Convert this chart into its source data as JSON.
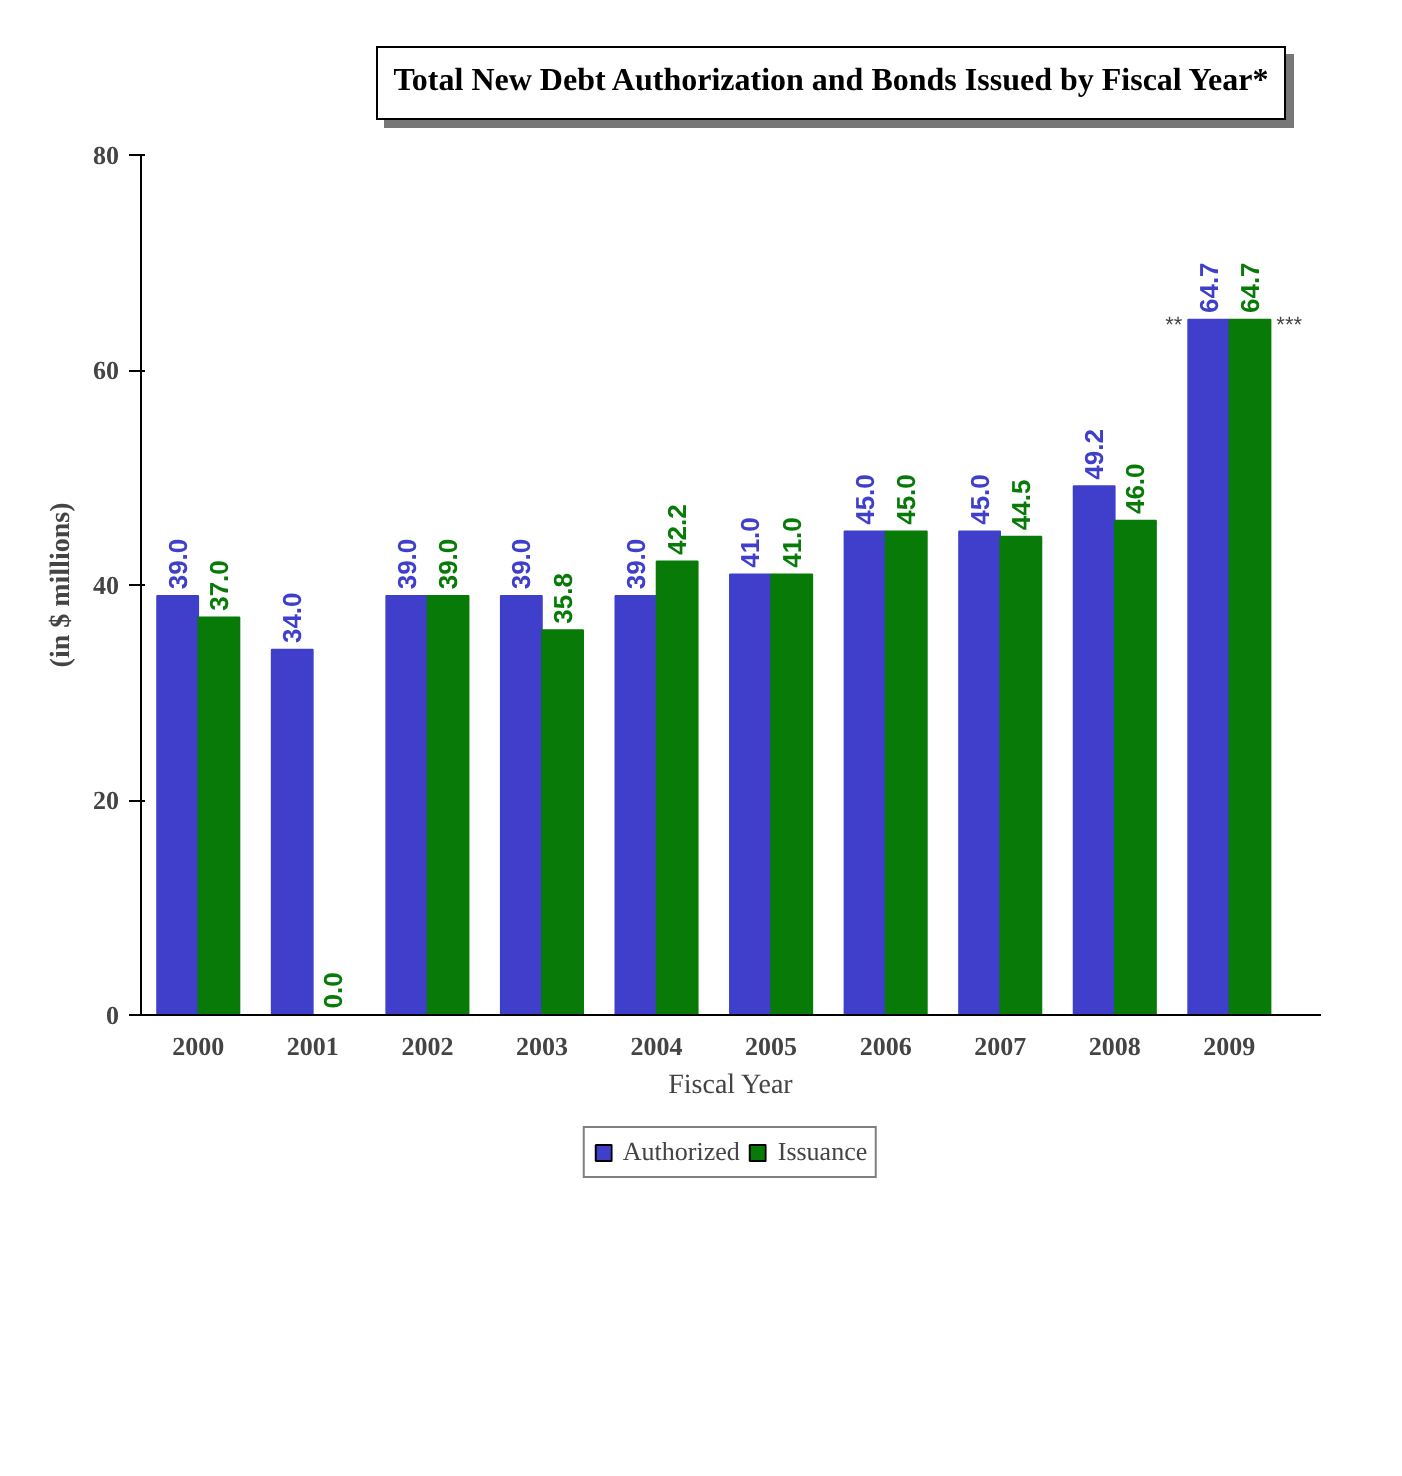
{
  "chart_data": {
    "type": "bar",
    "title": "Total New Debt Authorization and Bonds Issued by Fiscal Year*",
    "xlabel": "Fiscal Year",
    "ylabel": "(in $ millions)",
    "categories": [
      "2000",
      "2001",
      "2002",
      "2003",
      "2004",
      "2005",
      "2006",
      "2007",
      "2008",
      "2009"
    ],
    "series": [
      {
        "name": "Authorized",
        "color": "#3f3fcc",
        "values": [
          39.0,
          34.0,
          39.0,
          39.0,
          39.0,
          41.0,
          45.0,
          45.0,
          49.2,
          64.7
        ],
        "value_labels": [
          "39.0",
          "34.0",
          "39.0",
          "39.0",
          "39.0",
          "41.0",
          "45.0",
          "45.0",
          "49.2",
          "64.7"
        ]
      },
      {
        "name": "Issuance",
        "color": "#077a07",
        "values": [
          37.0,
          0.0,
          39.0,
          35.8,
          42.2,
          41.0,
          45.0,
          44.5,
          46.0,
          64.7
        ],
        "value_labels": [
          "37.0",
          "0.0",
          "39.0",
          "35.8",
          "42.2",
          "41.0",
          "45.0",
          "44.5",
          "46.0",
          "64.7"
        ]
      }
    ],
    "ylim": [
      0,
      80
    ],
    "yticks": [
      0,
      20,
      40,
      60,
      80
    ],
    "grid": false,
    "legend": "bottom",
    "data_labels": true,
    "annotations": [
      {
        "text": "**",
        "x": "2009",
        "y": 63
      },
      {
        "text": "***",
        "x": "2009",
        "y": 63
      }
    ]
  }
}
